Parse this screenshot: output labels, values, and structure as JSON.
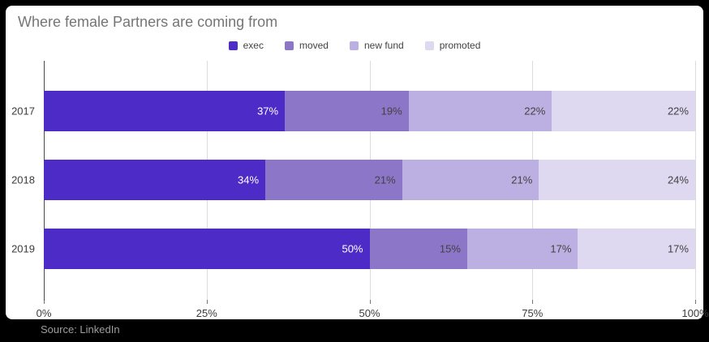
{
  "header": {
    "title": "Where female Partners are coming from"
  },
  "source_label": "Source: LinkedIn",
  "colors": {
    "frame_background": "#000000",
    "card_background": "#ffffff",
    "title_text": "#757575",
    "axis_text": "#3c3c3c",
    "gridline": "#dcdcdc",
    "source_text": "#9e9e9e"
  },
  "chart_data": {
    "type": "bar",
    "orientation": "horizontal",
    "stacked": true,
    "title": "Where female Partners are coming from",
    "categories": [
      "2017",
      "2018",
      "2019"
    ],
    "series": [
      {
        "name": "exec",
        "color": "#4c2bc7",
        "label_color": "#ffffff",
        "values": [
          37,
          34,
          50
        ]
      },
      {
        "name": "moved",
        "color": "#8c76c8",
        "label_color": "#424242",
        "values": [
          19,
          21,
          15
        ]
      },
      {
        "name": "new fund",
        "color": "#bcb0e2",
        "label_color": "#424242",
        "values": [
          22,
          21,
          17
        ]
      },
      {
        "name": "promoted",
        "color": "#ded8f0",
        "label_color": "#424242",
        "values": [
          22,
          24,
          17
        ]
      }
    ],
    "value_suffix": "%",
    "x_ticks": [
      "0%",
      "25%",
      "50%",
      "75%",
      "100%"
    ],
    "x_tick_values": [
      0,
      25,
      50,
      75,
      100
    ],
    "xlim": [
      0,
      100
    ],
    "legend_position": "top",
    "grid": "vertical",
    "legend_labels": [
      "exec",
      "moved",
      "new fund",
      "promoted"
    ]
  }
}
